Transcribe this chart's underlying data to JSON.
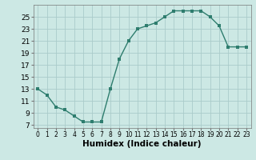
{
  "x": [
    0,
    1,
    2,
    3,
    4,
    5,
    6,
    7,
    8,
    9,
    10,
    11,
    12,
    13,
    14,
    15,
    16,
    17,
    18,
    19,
    20,
    21,
    22,
    23
  ],
  "y": [
    13,
    12,
    10,
    9.5,
    8.5,
    7.5,
    7.5,
    7.5,
    13,
    18,
    21,
    23,
    23.5,
    24,
    25,
    26,
    26,
    26,
    26,
    25,
    23.5,
    20,
    20,
    20
  ],
  "line_color": "#2e7d6e",
  "marker": "s",
  "marker_size": 2.5,
  "bg_color": "#cce8e4",
  "grid_color": "#aaccca",
  "xlabel": "Humidex (Indice chaleur)",
  "xlabel_fontsize": 7.5,
  "ylabel_ticks": [
    7,
    9,
    11,
    13,
    15,
    17,
    19,
    21,
    23,
    25
  ],
  "ylim": [
    6.5,
    27
  ],
  "xlim": [
    -0.5,
    23.5
  ]
}
